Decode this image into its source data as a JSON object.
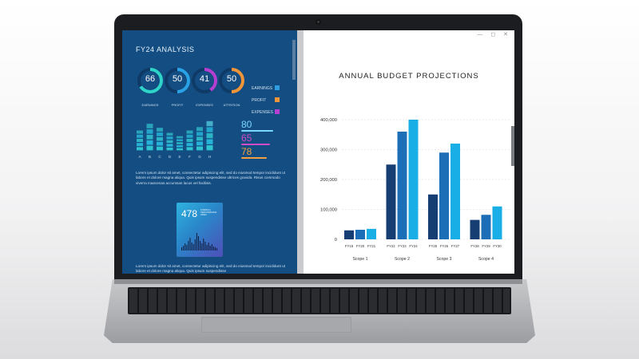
{
  "window": {
    "controls": "— ◻ ✕"
  },
  "analysis": {
    "title": "FY24 ANALYSIS",
    "donuts": [
      {
        "value": "66",
        "label": "EARNINGS",
        "color": "#2fd4c8",
        "fraction": 0.66
      },
      {
        "value": "50",
        "label": "PROFIT",
        "color": "#29a3e6",
        "fraction": 0.5
      },
      {
        "value": "41",
        "label": "EXPENSES",
        "color": "#b43fd1",
        "fraction": 0.41
      },
      {
        "value": "50",
        "label": "ATTRITION",
        "color": "#f0953a",
        "fraction": 0.5
      }
    ],
    "legend": [
      {
        "label": "EARNINGS",
        "color": "#2f9ee0"
      },
      {
        "label": "PROFIT",
        "color": "#f0953a"
      },
      {
        "label": "EXPENSES",
        "color": "#b43fd1"
      }
    ],
    "stats": [
      {
        "value": "80",
        "color": "#7ad8ff"
      },
      {
        "value": "65",
        "color": "#d14cc8"
      },
      {
        "value": "78",
        "color": "#f0a03e"
      }
    ],
    "bar_letters": [
      "A",
      "B",
      "C",
      "D",
      "E",
      "F",
      "G",
      "H"
    ],
    "bar_fractions": [
      0.62,
      0.82,
      0.7,
      0.55,
      0.45,
      0.62,
      0.72,
      0.9
    ],
    "paragraph1": "Lorem ipsum dolor sit amet, consectetur adipiscing elit, sed do eiusmod tempor incididunt ut labore et dolore magna aliqua. Quis ipsum suspendisse ultrices gravida. Risus commodo viverra maecenas accumsan lacus vel facilisis.",
    "card_value": "478",
    "card_subtitle": "FORMULA PERFORMANCE INDEX",
    "paragraph2": "Lorem ipsum dolor sit amet, consectetur adipiscing elit, sed do eiusmod tempor incididunt ut labore et dolore magna aliqua. Quis ipsum suspendisse"
  },
  "chart_data": {
    "type": "bar",
    "title": "ANNUAL BUDGET PROJECTIONS",
    "ylim": [
      0,
      400000
    ],
    "yticks": [
      "0",
      "100,000",
      "200,000",
      "300,000",
      "400,000"
    ],
    "groups": [
      {
        "name": "Scope 1",
        "labels": [
          "FY19",
          "FY20",
          "FY21"
        ],
        "values": [
          30000,
          32000,
          35000
        ]
      },
      {
        "name": "Scope 2",
        "labels": [
          "FY22",
          "FY23",
          "FY24"
        ],
        "values": [
          250000,
          360000,
          400000
        ]
      },
      {
        "name": "Scope 3",
        "labels": [
          "FY25",
          "FY26",
          "FY27"
        ],
        "values": [
          150000,
          290000,
          320000
        ]
      },
      {
        "name": "Scope 4",
        "labels": [
          "FY28",
          "FY29",
          "FY30"
        ],
        "values": [
          65000,
          82000,
          110000
        ]
      }
    ],
    "colors": [
      "#163e73",
      "#1c6fb6",
      "#19aee6"
    ]
  }
}
